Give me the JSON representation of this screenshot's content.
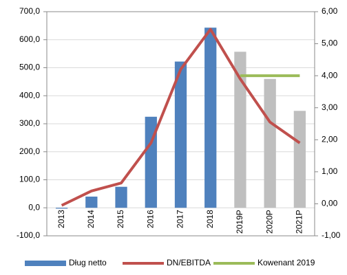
{
  "chart_data": {
    "type": "bar",
    "categories": [
      "2013",
      "2014",
      "2015",
      "2016",
      "2017",
      "2018",
      "2019P",
      "2020P",
      "2021P"
    ],
    "series": [
      {
        "name": "Dług netto",
        "color": "#4f81bd",
        "colors": [
          "#4f81bd",
          "#4f81bd",
          "#4f81bd",
          "#4f81bd",
          "#4f81bd",
          "#4f81bd",
          "#bfbfbf",
          "#bfbfbf",
          "#bfbfbf"
        ],
        "values": [
          -3,
          40,
          75,
          325,
          522,
          643,
          557,
          460,
          346
        ]
      },
      {
        "name": "DN/EBITDA",
        "type": "line",
        "axis": "y2",
        "color": "#c0504d",
        "values": [
          -0.05,
          0.4,
          0.65,
          1.9,
          4.2,
          5.45,
          3.9,
          2.55,
          1.9
        ]
      },
      {
        "name": "Kowenant 2019",
        "type": "line",
        "axis": "y2",
        "color": "#9bbb59",
        "values": [
          null,
          null,
          null,
          null,
          null,
          null,
          4.0,
          4.0,
          4.0
        ]
      }
    ],
    "ylim": [
      -100,
      700
    ],
    "yticks": [
      {
        "value": -100,
        "label": "-100,0"
      },
      {
        "value": 0,
        "label": "0,0"
      },
      {
        "value": 100,
        "label": "100,0"
      },
      {
        "value": 200,
        "label": "200,0"
      },
      {
        "value": 300,
        "label": "300,0"
      },
      {
        "value": 400,
        "label": "400,0"
      },
      {
        "value": 500,
        "label": "500,0"
      },
      {
        "value": 600,
        "label": "600,0"
      },
      {
        "value": 700,
        "label": "700,0"
      }
    ],
    "y2lim": [
      -1,
      6
    ],
    "y2ticks": [
      {
        "value": -1,
        "label": "-1,00"
      },
      {
        "value": 0,
        "label": "0,00"
      },
      {
        "value": 1,
        "label": "1,00"
      },
      {
        "value": 2,
        "label": "2,00"
      },
      {
        "value": 3,
        "label": "3,00"
      },
      {
        "value": 4,
        "label": "4,00"
      },
      {
        "value": 5,
        "label": "5,00"
      },
      {
        "value": 6,
        "label": "6,00"
      }
    ],
    "grid": true,
    "legend": "bottom"
  }
}
